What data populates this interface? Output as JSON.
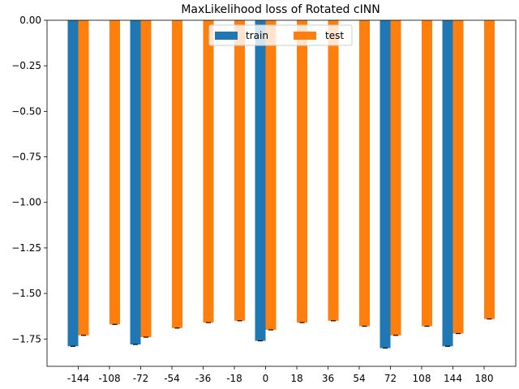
{
  "chart_data": {
    "type": "bar",
    "title": "MaxLikelihood loss of Rotated cINN",
    "xlabel": "",
    "ylabel": "",
    "categories": [
      "-144",
      "-108",
      "-72",
      "-54",
      "-36",
      "-18",
      "0",
      "18",
      "36",
      "54",
      "72",
      "108",
      "144",
      "180"
    ],
    "series": [
      {
        "name": "train",
        "color": "#1f77b4",
        "values": [
          -1.79,
          null,
          -1.78,
          null,
          null,
          null,
          -1.76,
          null,
          null,
          null,
          -1.8,
          null,
          -1.79,
          null
        ]
      },
      {
        "name": "test",
        "color": "#ff7f0e",
        "values": [
          -1.73,
          -1.67,
          -1.74,
          -1.69,
          -1.66,
          -1.65,
          -1.7,
          -1.66,
          -1.65,
          -1.68,
          -1.73,
          -1.68,
          -1.72,
          -1.64
        ]
      }
    ],
    "ylim": [
      -1.9,
      0.0
    ],
    "yticks": [
      "0.00",
      "−0.25",
      "−0.50",
      "−0.75",
      "−1.00",
      "−1.25",
      "−1.50",
      "−1.75"
    ],
    "ytick_values": [
      0.0,
      -0.25,
      -0.5,
      -0.75,
      -1.0,
      -1.25,
      -1.5,
      -1.75
    ],
    "grid": false,
    "legend_position": "top-center",
    "error_bars": true
  }
}
